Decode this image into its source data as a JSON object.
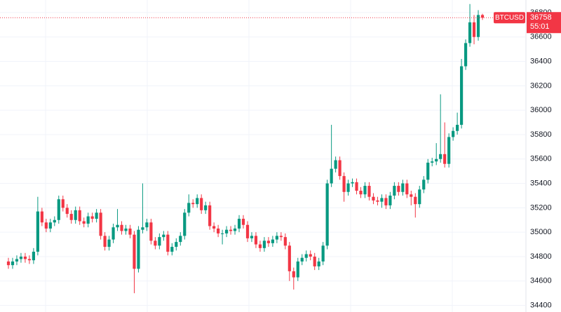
{
  "chart_data": {
    "type": "candlestick",
    "symbol": "BTCUSD",
    "last_price": 36758,
    "countdown": "55:01",
    "up_color": "#089981",
    "down_color": "#f23645",
    "ylim": [
      34346,
      36903
    ],
    "yticks": [
      34400,
      34600,
      34800,
      35000,
      35200,
      35400,
      35600,
      35800,
      36000,
      36200,
      36400,
      36600,
      36800
    ],
    "grid": true,
    "open": [
      34760,
      34730,
      34760,
      34780,
      34800,
      34780,
      34770,
      34840,
      35170,
      35080,
      35030,
      35080,
      35100,
      35270,
      35200,
      35150,
      35100,
      35180,
      35090,
      35070,
      35130,
      35110,
      35160,
      34970,
      34880,
      34940,
      35040,
      35060,
      35010,
      35030,
      34980,
      34700,
      35020,
      35040,
      35080,
      34930,
      34890,
      34960,
      34980,
      34840,
      34880,
      34920,
      34970,
      35160,
      35240,
      35230,
      35280,
      35180,
      35220,
      35050,
      35030,
      34990,
      34990,
      35020,
      35010,
      35030,
      35110,
      35060,
      34950,
      34970,
      34900,
      34870,
      34930,
      34910,
      34940,
      34970,
      34960,
      34890,
      34680,
      34630,
      34760,
      34790,
      34820,
      34800,
      34720,
      34760,
      34890,
      35400,
      35520,
      35590,
      35460,
      35330,
      35400,
      35410,
      35340,
      35310,
      35380,
      35290,
      35260,
      35250,
      35280,
      35220,
      35300,
      35380,
      35330,
      35400,
      35310,
      35290,
      35230,
      35350,
      35430,
      35570,
      35580,
      35600,
      35640,
      35560,
      35780,
      35830,
      35880,
      36360,
      36550,
      36720,
      36600,
      36780
    ],
    "high": [
      34790,
      34790,
      34810,
      34830,
      34830,
      34810,
      34870,
      35290,
      35200,
      35110,
      35110,
      35130,
      35300,
      35300,
      35230,
      35180,
      35210,
      35210,
      35120,
      35160,
      35160,
      35190,
      35190,
      35000,
      34970,
      35070,
      35190,
      35090,
      35060,
      35060,
      35010,
      35050,
      35400,
      35110,
      35110,
      34960,
      34990,
      35010,
      35010,
      34910,
      34950,
      35000,
      35190,
      35310,
      35270,
      35310,
      35310,
      35250,
      35250,
      35080,
      35060,
      35020,
      35050,
      35050,
      35060,
      35140,
      35140,
      35090,
      35000,
      35000,
      34930,
      34960,
      34960,
      34970,
      35000,
      35000,
      34990,
      34920,
      34710,
      34790,
      34820,
      34850,
      34850,
      34830,
      34790,
      34920,
      35430,
      35880,
      35620,
      35620,
      35490,
      35430,
      35440,
      35440,
      35370,
      35410,
      35410,
      35320,
      35290,
      35310,
      35310,
      35330,
      35410,
      35410,
      35430,
      35430,
      35340,
      35320,
      35380,
      35460,
      35600,
      35610,
      35730,
      36130,
      35900,
      35810,
      35860,
      35980,
      36420,
      36580,
      36870,
      36780,
      36820,
      36790
    ],
    "low": [
      34700,
      34700,
      34730,
      34750,
      34750,
      34740,
      34740,
      34810,
      35050,
      35000,
      35000,
      35050,
      35070,
      35170,
      35120,
      35070,
      35070,
      35060,
      35040,
      35040,
      35080,
      35080,
      34940,
      34850,
      34850,
      34910,
      35010,
      34980,
      34980,
      34950,
      34500,
      34670,
      34990,
      35010,
      34900,
      34860,
      34860,
      34930,
      34810,
      34810,
      34850,
      34890,
      34940,
      35130,
      35200,
      35200,
      35150,
      35150,
      35020,
      35000,
      34960,
      34900,
      34960,
      34980,
      34980,
      35000,
      35030,
      34920,
      34920,
      34870,
      34840,
      34840,
      34880,
      34880,
      34910,
      34930,
      34860,
      34600,
      34530,
      34600,
      34730,
      34760,
      34770,
      34690,
      34690,
      34730,
      34860,
      35370,
      35490,
      35430,
      35250,
      35300,
      35370,
      35310,
      35280,
      35280,
      35260,
      35230,
      35220,
      35200,
      35190,
      35190,
      35270,
      35300,
      35300,
      35280,
      35220,
      35120,
      35200,
      35320,
      35400,
      35540,
      35550,
      35570,
      35530,
      35530,
      35750,
      35800,
      35850,
      36330,
      36520,
      36540,
      36570,
      36740
    ],
    "close": [
      34730,
      34760,
      34780,
      34800,
      34780,
      34770,
      34840,
      35170,
      35080,
      35030,
      35080,
      35100,
      35270,
      35200,
      35150,
      35100,
      35180,
      35090,
      35070,
      35130,
      35110,
      35160,
      34970,
      34880,
      34940,
      35040,
      35060,
      35010,
      35030,
      34980,
      34700,
      35020,
      35040,
      35080,
      34930,
      34890,
      34960,
      34980,
      34840,
      34880,
      34920,
      34970,
      35160,
      35240,
      35230,
      35280,
      35180,
      35220,
      35050,
      35030,
      34990,
      34990,
      35020,
      35010,
      35030,
      35110,
      35060,
      34950,
      34970,
      34900,
      34870,
      34930,
      34910,
      34940,
      34970,
      34960,
      34890,
      34680,
      34630,
      34760,
      34790,
      34820,
      34800,
      34720,
      34760,
      34890,
      35400,
      35520,
      35590,
      35460,
      35330,
      35400,
      35410,
      35340,
      35310,
      35380,
      35290,
      35260,
      35250,
      35280,
      35220,
      35300,
      35380,
      35330,
      35400,
      35310,
      35290,
      35230,
      35350,
      35430,
      35570,
      35580,
      35600,
      35640,
      35560,
      35780,
      35830,
      35880,
      36360,
      36550,
      36720,
      36600,
      36780,
      36758
    ]
  }
}
